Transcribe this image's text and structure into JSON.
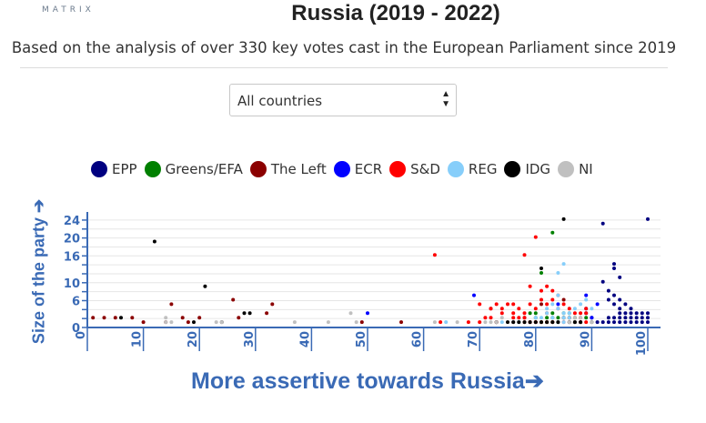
{
  "header": {
    "logo_text": "MATRIX",
    "title": "Russia (2019 - 2022)",
    "subtitle": "Based on the analysis of over 330 key votes cast in the European Parliament since 2019"
  },
  "filter": {
    "selected": "All countries"
  },
  "colors": {
    "axis": "#3a6ab5",
    "EPP": "#000080",
    "Greens/EFA": "#008000",
    "The Left": "#8b0000",
    "ECR": "#0000ff",
    "S&D": "#ff0000",
    "REG": "#87cefa",
    "IDG": "#000000",
    "NI": "#c0c0c0"
  },
  "chart_data": {
    "type": "scatter",
    "xlabel": "More assertive towards Russia➔",
    "ylabel": "Size of the party ➔",
    "xlim": [
      0,
      100
    ],
    "ylim": [
      0,
      25
    ],
    "xticks": [
      0,
      10,
      20,
      30,
      40,
      50,
      60,
      70,
      80,
      90,
      100
    ],
    "yticks": [
      0,
      2,
      4,
      6,
      8,
      10,
      12,
      14,
      16,
      18,
      20,
      22,
      24
    ],
    "ytick_labels": [
      "0",
      "",
      "",
      "6",
      "",
      "10",
      "",
      "",
      "16",
      "",
      "20",
      "",
      "24"
    ],
    "grid": true,
    "legend_position": "top",
    "series": [
      {
        "name": "EPP",
        "points": [
          [
            92,
            23
          ],
          [
            100,
            24
          ],
          [
            94,
            13
          ],
          [
            95,
            11
          ],
          [
            92,
            10
          ],
          [
            93,
            8
          ],
          [
            94,
            7
          ],
          [
            93,
            6
          ],
          [
            95,
            6
          ],
          [
            94,
            5
          ],
          [
            96,
            5
          ],
          [
            95,
            4
          ],
          [
            97,
            4
          ],
          [
            96,
            3
          ],
          [
            98,
            3
          ],
          [
            99,
            3
          ],
          [
            100,
            3
          ],
          [
            93,
            2
          ],
          [
            94,
            2
          ],
          [
            95,
            2
          ],
          [
            96,
            2
          ],
          [
            97,
            2
          ],
          [
            98,
            2
          ],
          [
            99,
            2
          ],
          [
            100,
            2
          ],
          [
            93,
            1
          ],
          [
            94,
            1
          ],
          [
            95,
            1
          ],
          [
            96,
            1
          ],
          [
            97,
            1
          ],
          [
            98,
            1
          ],
          [
            99,
            1
          ],
          [
            100,
            1
          ],
          [
            91,
            1
          ],
          [
            92,
            1
          ],
          [
            94,
            14
          ],
          [
            89,
            3
          ],
          [
            90,
            2
          ],
          [
            95,
            3
          ],
          [
            97,
            3
          ]
        ]
      },
      {
        "name": "Greens/EFA",
        "points": [
          [
            83,
            21
          ],
          [
            81,
            12
          ],
          [
            79,
            3
          ],
          [
            80,
            3
          ],
          [
            82,
            2
          ],
          [
            83,
            2
          ],
          [
            84,
            2
          ],
          [
            85,
            2
          ],
          [
            86,
            2
          ],
          [
            81,
            1
          ],
          [
            82,
            1
          ],
          [
            83,
            1
          ],
          [
            84,
            1
          ],
          [
            87,
            1
          ],
          [
            88,
            1
          ],
          [
            80,
            2
          ],
          [
            83,
            3
          ],
          [
            85,
            3
          ],
          [
            87,
            2
          ],
          [
            89,
            2
          ],
          [
            86,
            3
          ]
        ]
      },
      {
        "name": "The Left",
        "points": [
          [
            1,
            2
          ],
          [
            3,
            2
          ],
          [
            5,
            2
          ],
          [
            8,
            2
          ],
          [
            10,
            1
          ],
          [
            15,
            5
          ],
          [
            17,
            2
          ],
          [
            18,
            1
          ],
          [
            26,
            6
          ],
          [
            27,
            2
          ],
          [
            33,
            5
          ],
          [
            32,
            3
          ],
          [
            49,
            1
          ],
          [
            56,
            1
          ],
          [
            72,
            4
          ],
          [
            73,
            1
          ],
          [
            78,
            2
          ],
          [
            79,
            1
          ],
          [
            80,
            1
          ],
          [
            81,
            5
          ],
          [
            85,
            6
          ],
          [
            85,
            2
          ],
          [
            20,
            2
          ],
          [
            14,
            1
          ]
        ]
      },
      {
        "name": "ECR",
        "points": [
          [
            50,
            3
          ],
          [
            69,
            7
          ],
          [
            84,
            5
          ],
          [
            89,
            7
          ],
          [
            91,
            5
          ],
          [
            90,
            2
          ],
          [
            88,
            1
          ],
          [
            89,
            4
          ]
        ]
      },
      {
        "name": "S&D",
        "points": [
          [
            62,
            16
          ],
          [
            78,
            16
          ],
          [
            80,
            20
          ],
          [
            79,
            9
          ],
          [
            81,
            8
          ],
          [
            82,
            9
          ],
          [
            83,
            8
          ],
          [
            84,
            7
          ],
          [
            72,
            4
          ],
          [
            74,
            4
          ],
          [
            75,
            5
          ],
          [
            76,
            3
          ],
          [
            77,
            2
          ],
          [
            78,
            2
          ],
          [
            80,
            4
          ],
          [
            82,
            5
          ],
          [
            84,
            4
          ],
          [
            86,
            4
          ],
          [
            87,
            3
          ],
          [
            88,
            3
          ],
          [
            89,
            4
          ],
          [
            71,
            2
          ],
          [
            73,
            1
          ],
          [
            76,
            1
          ],
          [
            78,
            1
          ],
          [
            79,
            1
          ],
          [
            80,
            1
          ],
          [
            81,
            1
          ],
          [
            82,
            1
          ],
          [
            83,
            1
          ],
          [
            85,
            1
          ],
          [
            86,
            1
          ],
          [
            87,
            1
          ],
          [
            88,
            1
          ],
          [
            70,
            5
          ],
          [
            74,
            3
          ],
          [
            77,
            4
          ],
          [
            79,
            5
          ],
          [
            81,
            6
          ],
          [
            83,
            6
          ],
          [
            85,
            5
          ],
          [
            89,
            3
          ],
          [
            70,
            1
          ],
          [
            72,
            2
          ],
          [
            76,
            2
          ],
          [
            78,
            3
          ],
          [
            82,
            3
          ],
          [
            86,
            2
          ],
          [
            88,
            2
          ],
          [
            89,
            1
          ],
          [
            68,
            1
          ],
          [
            63,
            1
          ],
          [
            73,
            5
          ],
          [
            76,
            5
          ]
        ]
      },
      {
        "name": "REG",
        "points": [
          [
            85,
            14
          ],
          [
            84,
            12
          ],
          [
            84,
            7
          ],
          [
            88,
            5
          ],
          [
            83,
            5
          ],
          [
            82,
            4
          ],
          [
            84,
            4
          ],
          [
            85,
            3
          ],
          [
            86,
            3
          ],
          [
            80,
            2
          ],
          [
            81,
            2
          ],
          [
            83,
            2
          ],
          [
            85,
            2
          ],
          [
            86,
            2
          ],
          [
            84,
            1
          ],
          [
            85,
            1
          ],
          [
            86,
            1
          ],
          [
            87,
            1
          ],
          [
            64,
            1
          ],
          [
            74,
            1
          ],
          [
            76,
            1
          ],
          [
            82,
            3
          ],
          [
            87,
            4
          ],
          [
            89,
            6
          ],
          [
            90,
            4
          ],
          [
            77,
            1
          ]
        ]
      },
      {
        "name": "IDG",
        "points": [
          [
            85,
            24
          ],
          [
            12,
            19
          ],
          [
            21,
            9
          ],
          [
            28,
            3
          ],
          [
            29,
            3
          ],
          [
            6,
            2
          ],
          [
            19,
            1
          ],
          [
            24,
            1
          ],
          [
            75,
            1
          ],
          [
            76,
            1
          ],
          [
            77,
            1
          ],
          [
            78,
            1
          ],
          [
            79,
            1
          ],
          [
            80,
            1
          ],
          [
            81,
            1
          ],
          [
            82,
            1
          ],
          [
            83,
            1
          ],
          [
            84,
            1
          ],
          [
            86,
            1
          ],
          [
            87,
            1
          ],
          [
            88,
            1
          ],
          [
            90,
            1
          ],
          [
            73,
            1
          ],
          [
            81,
            13
          ]
        ]
      },
      {
        "name": "NI",
        "points": [
          [
            14,
            2
          ],
          [
            14,
            1
          ],
          [
            15,
            1
          ],
          [
            24,
            1
          ],
          [
            37,
            1
          ],
          [
            43,
            1
          ],
          [
            47,
            3
          ],
          [
            48,
            1
          ],
          [
            62,
            1
          ],
          [
            71,
            1
          ],
          [
            72,
            1
          ],
          [
            73,
            1
          ],
          [
            86,
            1
          ],
          [
            87,
            2
          ],
          [
            88,
            2
          ],
          [
            90,
            1
          ],
          [
            23,
            1
          ],
          [
            66,
            1
          ],
          [
            74,
            2
          ]
        ]
      }
    ]
  }
}
